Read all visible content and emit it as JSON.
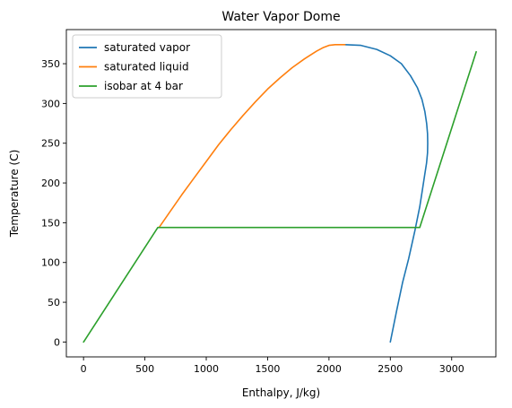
{
  "chart_data": {
    "type": "line",
    "title": "Water Vapor Dome",
    "xlabel": "Enthalpy, J/kg)",
    "ylabel": "Temperature (C)",
    "xlim": [
      -140,
      3360
    ],
    "ylim": [
      -18.7,
      392.9
    ],
    "xticks": [
      0,
      500,
      1000,
      1500,
      2000,
      2500,
      3000
    ],
    "yticks": [
      0,
      50,
      100,
      150,
      200,
      250,
      300,
      350
    ],
    "grid": false,
    "legend_position": "top-left",
    "series": [
      {
        "name": "saturated vapor",
        "color": "#1f77b4",
        "x": [
          2500,
          2550,
          2600,
          2650,
          2700,
          2740,
          2760,
          2780,
          2795,
          2803,
          2805,
          2803,
          2796,
          2781,
          2758,
          2720,
          2664,
          2590,
          2500,
          2390,
          2260,
          2130
        ],
        "y": [
          0,
          38,
          75,
          105,
          140,
          170,
          190,
          210,
          225,
          238,
          250,
          262,
          275,
          290,
          305,
          320,
          335,
          350,
          360,
          368,
          373,
          374
        ]
      },
      {
        "name": "saturated liquid",
        "color": "#ff7f0e",
        "x": [
          620,
          700,
          800,
          900,
          1000,
          1100,
          1200,
          1300,
          1400,
          1500,
          1600,
          1700,
          1800,
          1850,
          1900,
          1950,
          2000,
          2050,
          2100,
          2130
        ],
        "y": [
          145,
          163,
          185,
          206,
          227,
          248,
          267,
          285,
          302,
          318,
          332,
          345,
          356,
          361,
          366,
          370,
          373,
          374,
          374,
          374
        ]
      },
      {
        "name": "isobar at 4 bar",
        "color": "#2ca02c",
        "x": [
          0,
          605,
          2740,
          3200
        ],
        "y": [
          0,
          144,
          144,
          365
        ]
      }
    ]
  }
}
